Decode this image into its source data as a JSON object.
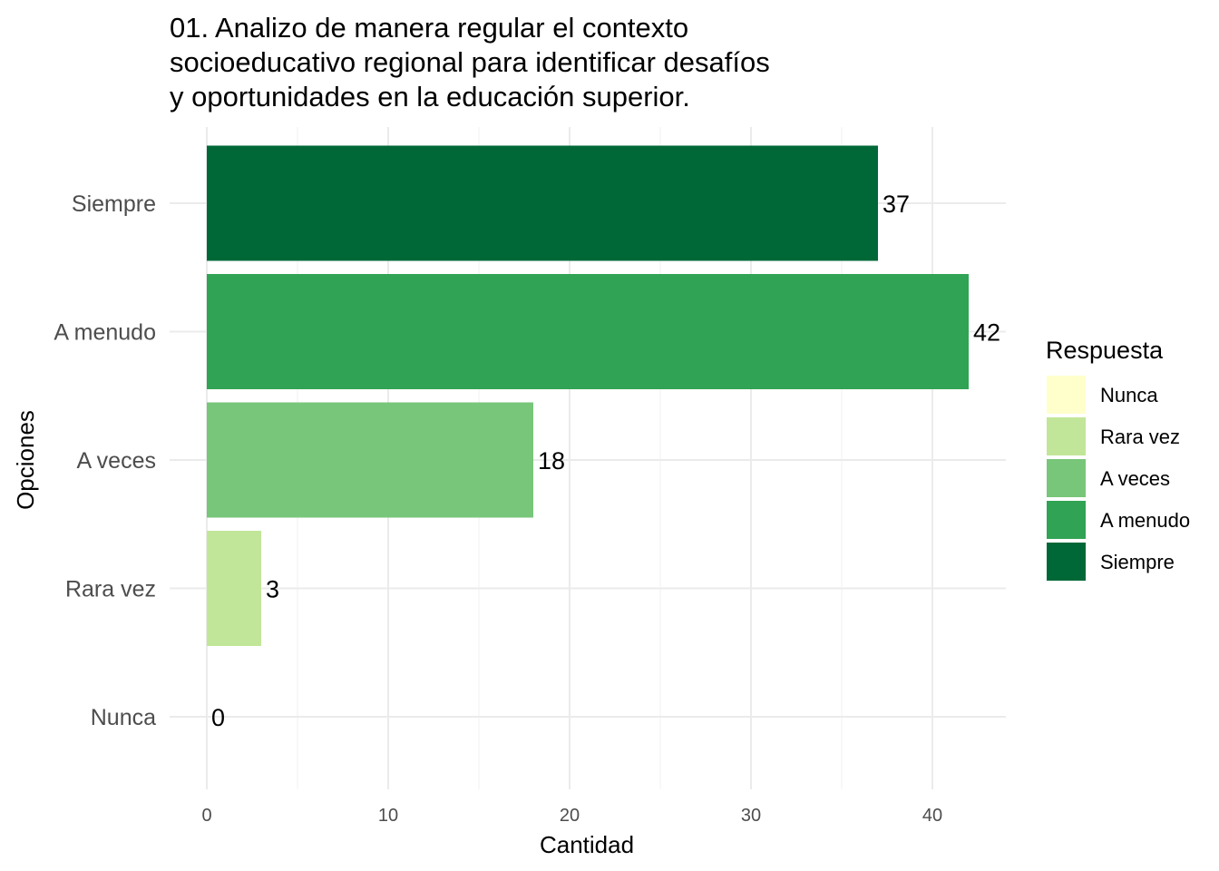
{
  "chart_data": {
    "type": "bar",
    "orientation": "horizontal",
    "title_lines": [
      "01. Analizo de manera regular el contexto",
      "socioeducativo regional para identificar desafíos",
      "y oportunidades en la educación superior."
    ],
    "xlabel": "Cantidad",
    "ylabel": "Opciones",
    "categories": [
      "Nunca",
      "Rara vez",
      "A veces",
      "A menudo",
      "Siempre"
    ],
    "values": [
      0,
      3,
      18,
      42,
      37
    ],
    "colors": [
      "#ffffcc",
      "#c2e699",
      "#78c679",
      "#31a354",
      "#006837"
    ],
    "xlim": [
      0,
      44
    ],
    "xticks": [
      0,
      10,
      20,
      30,
      40
    ],
    "grid": true,
    "legend": {
      "title": "Respuesta",
      "placement": "right",
      "entries": [
        "Nunca",
        "Rara vez",
        "A veces",
        "A menudo",
        "Siempre"
      ]
    }
  }
}
